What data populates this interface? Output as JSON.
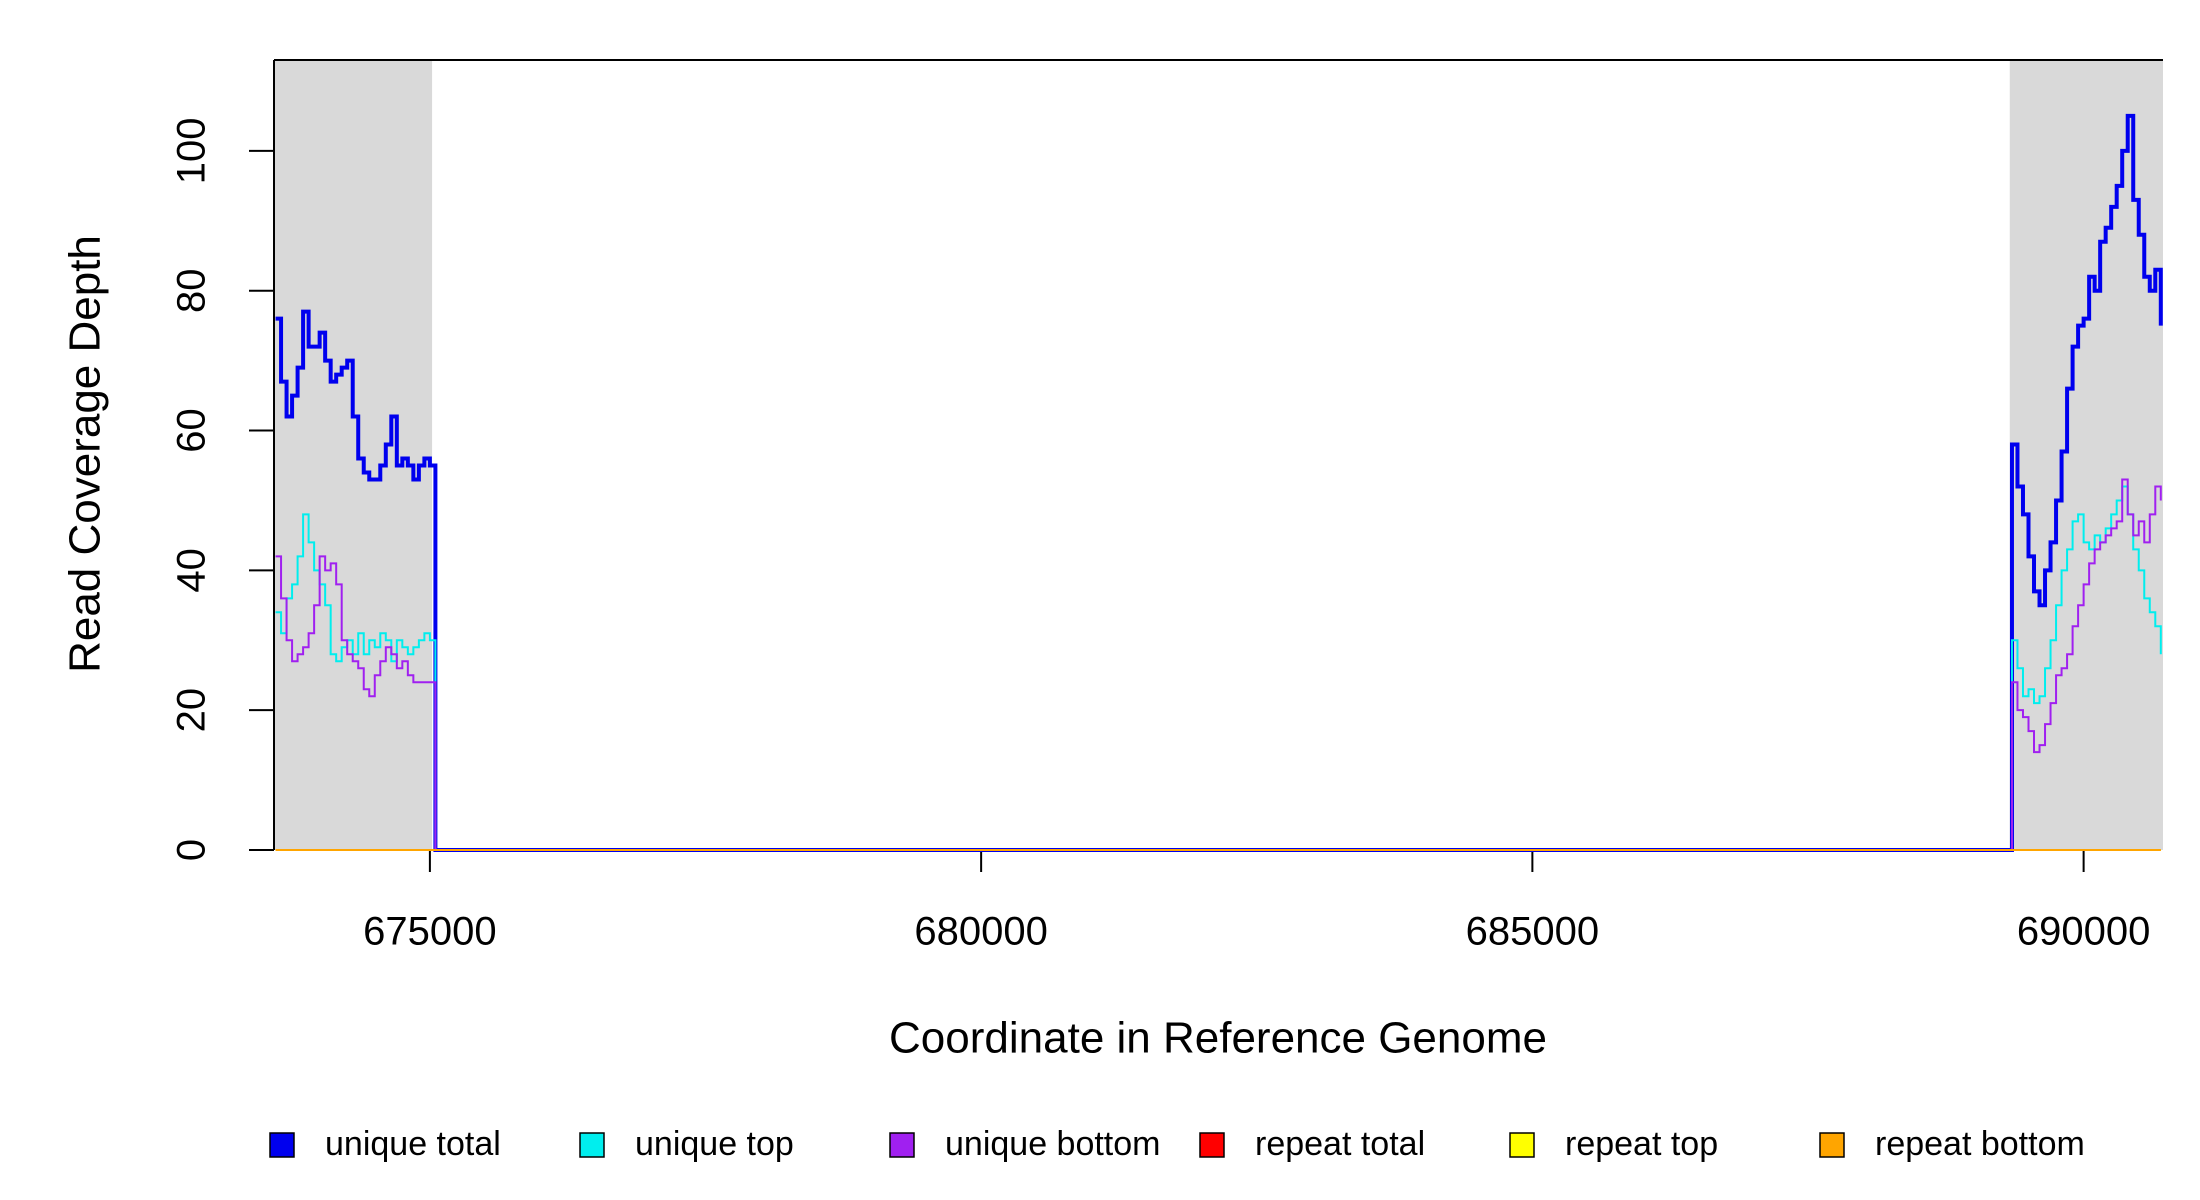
{
  "chart_data": {
    "type": "line",
    "step": true,
    "xlabel": "Coordinate in Reference Genome",
    "ylabel": "Read Coverage Depth",
    "xlim": [
      673586,
      690720
    ],
    "ylim": [
      0,
      113
    ],
    "xticks": [
      675000,
      680000,
      685000,
      690000
    ],
    "yticks": [
      0,
      20,
      40,
      60,
      80,
      100
    ],
    "shaded_regions": [
      [
        673586,
        675020
      ],
      [
        689330,
        690720
      ]
    ],
    "shade_color": "#d9d9d9",
    "x": [
      673600,
      673650,
      673700,
      673750,
      673800,
      673850,
      673900,
      673950,
      674000,
      674050,
      674100,
      674150,
      674200,
      674250,
      674300,
      674350,
      674400,
      674450,
      674500,
      674550,
      674600,
      674650,
      674700,
      674750,
      674800,
      674850,
      674900,
      674950,
      675000,
      675050,
      689300,
      689350,
      689400,
      689450,
      689500,
      689550,
      689600,
      689650,
      689700,
      689750,
      689800,
      689850,
      689900,
      689950,
      690000,
      690050,
      690100,
      690150,
      690200,
      690250,
      690300,
      690350,
      690400,
      690450,
      690500,
      690550,
      690600,
      690650,
      690700
    ],
    "series": [
      {
        "name": "unique total",
        "color": "#0000ee",
        "width": 4,
        "values": [
          76,
          67,
          62,
          65,
          69,
          77,
          72,
          72,
          74,
          70,
          67,
          68,
          69,
          70,
          62,
          56,
          54,
          53,
          53,
          55,
          58,
          62,
          55,
          56,
          55,
          53,
          55,
          56,
          55,
          0,
          0,
          58,
          52,
          48,
          42,
          37,
          35,
          40,
          44,
          50,
          57,
          66,
          72,
          75,
          76,
          82,
          80,
          87,
          89,
          92,
          95,
          100,
          105,
          93,
          88,
          82,
          80,
          83,
          75
        ]
      },
      {
        "name": "unique top",
        "color": "#00eeee",
        "width": 2,
        "values": [
          34,
          31,
          36,
          38,
          42,
          48,
          44,
          40,
          38,
          35,
          28,
          27,
          29,
          30,
          28,
          31,
          28,
          30,
          29,
          31,
          30,
          27,
          30,
          29,
          28,
          29,
          30,
          31,
          30,
          0,
          0,
          30,
          26,
          22,
          23,
          21,
          22,
          26,
          30,
          35,
          40,
          43,
          47,
          48,
          44,
          43,
          45,
          44,
          46,
          48,
          50,
          52,
          48,
          43,
          40,
          36,
          34,
          32,
          28
        ]
      },
      {
        "name": "unique bottom",
        "color": "#a020f0",
        "width": 2,
        "values": [
          42,
          36,
          30,
          27,
          28,
          29,
          31,
          35,
          42,
          40,
          41,
          38,
          30,
          28,
          27,
          26,
          23,
          22,
          25,
          27,
          29,
          28,
          26,
          27,
          25,
          24,
          24,
          24,
          24,
          0,
          0,
          24,
          20,
          19,
          17,
          14,
          15,
          18,
          21,
          25,
          26,
          28,
          32,
          35,
          38,
          41,
          43,
          44,
          45,
          46,
          47,
          53,
          48,
          45,
          47,
          44,
          48,
          52,
          50
        ]
      },
      {
        "name": "repeat total",
        "color": "#ff0000",
        "width": 2,
        "values": [
          0,
          0,
          0,
          0,
          0,
          0,
          0,
          0,
          0,
          0,
          0,
          0,
          0,
          0,
          0,
          0,
          0,
          0,
          0,
          0,
          0,
          0,
          0,
          0,
          0,
          0,
          0,
          0,
          0,
          0,
          0,
          0,
          0,
          0,
          0,
          0,
          0,
          0,
          0,
          0,
          0,
          0,
          0,
          0,
          0,
          0,
          0,
          0,
          0,
          0,
          0,
          0,
          0,
          0,
          0,
          0,
          0,
          0,
          0
        ]
      },
      {
        "name": "repeat top",
        "color": "#ffff00",
        "width": 2,
        "values": [
          0,
          0,
          0,
          0,
          0,
          0,
          0,
          0,
          0,
          0,
          0,
          0,
          0,
          0,
          0,
          0,
          0,
          0,
          0,
          0,
          0,
          0,
          0,
          0,
          0,
          0,
          0,
          0,
          0,
          0,
          0,
          0,
          0,
          0,
          0,
          0,
          0,
          0,
          0,
          0,
          0,
          0,
          0,
          0,
          0,
          0,
          0,
          0,
          0,
          0,
          0,
          0,
          0,
          0,
          0,
          0,
          0,
          0,
          0
        ]
      },
      {
        "name": "repeat bottom",
        "color": "#ffa500",
        "width": 2,
        "values": [
          0,
          0,
          0,
          0,
          0,
          0,
          0,
          0,
          0,
          0,
          0,
          0,
          0,
          0,
          0,
          0,
          0,
          0,
          0,
          0,
          0,
          0,
          0,
          0,
          0,
          0,
          0,
          0,
          0,
          0,
          0,
          0,
          0,
          0,
          0,
          0,
          0,
          0,
          0,
          0,
          0,
          0,
          0,
          0,
          0,
          0,
          0,
          0,
          0,
          0,
          0,
          0,
          0,
          0,
          0,
          0,
          0,
          0,
          0
        ]
      }
    ]
  }
}
